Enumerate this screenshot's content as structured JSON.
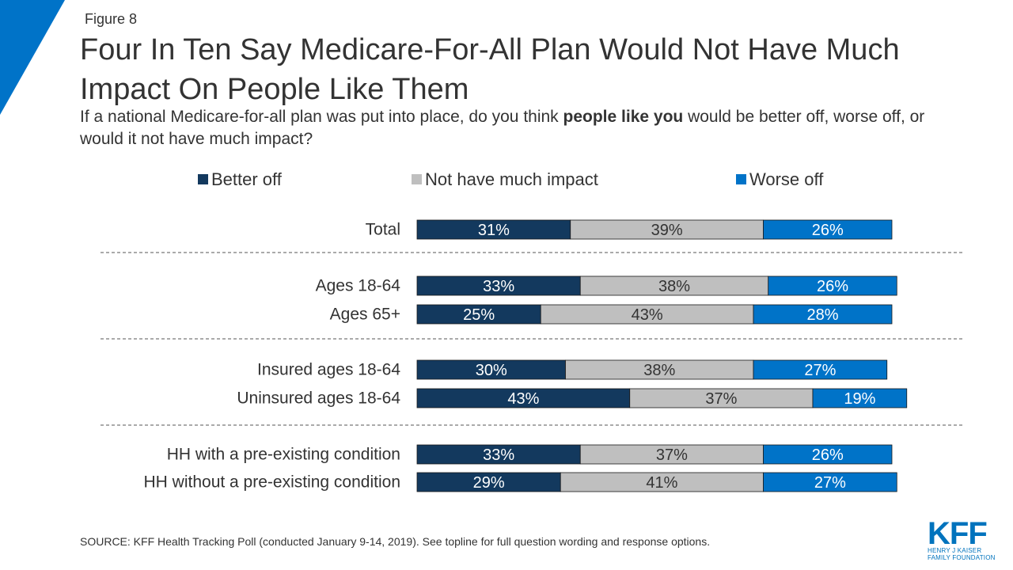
{
  "figure_label": "Figure 8",
  "title": "Four In Ten Say Medicare-For-All Plan Would Not Have Much Impact On People Like Them",
  "subtitle": {
    "before": "If a national Medicare-for-all plan was put into place, do you think ",
    "bold": "people like you",
    "after": " would be better off, worse off, or would it not have much impact?"
  },
  "colors": {
    "better_off": "#13395e",
    "no_impact": "#bfbfbf",
    "worse_off": "#0073c8",
    "brand": "#0073bd"
  },
  "chart_data": {
    "type": "bar",
    "orientation": "horizontal",
    "stacked": true,
    "legend_position": "top",
    "xlim": [
      0,
      100
    ],
    "categories": [
      "Total",
      "Ages 18-64",
      "Ages 65+",
      "Insured ages 18-64",
      "Uninsured ages 18-64",
      "HH with a pre-existing condition",
      "HH without a pre-existing condition"
    ],
    "groups": [
      [
        0
      ],
      [
        1,
        2
      ],
      [
        3,
        4
      ],
      [
        5,
        6
      ]
    ],
    "series": [
      {
        "name": "Better off",
        "key": "better_off",
        "values": [
          31,
          33,
          25,
          30,
          43,
          33,
          29
        ],
        "labels": [
          "31%",
          "33%",
          "25%",
          "30%",
          "43%",
          "33%",
          "29%"
        ]
      },
      {
        "name": "Not have much impact",
        "key": "no_impact",
        "values": [
          39,
          38,
          43,
          38,
          37,
          37,
          41
        ],
        "labels": [
          "39%",
          "38%",
          "43%",
          "38%",
          "37%",
          "37%",
          "41%"
        ]
      },
      {
        "name": "Worse off",
        "key": "worse_off",
        "values": [
          26,
          26,
          28,
          27,
          19,
          26,
          27
        ],
        "labels": [
          "26%",
          "26%",
          "28%",
          "27%",
          "19%",
          "26%",
          "27%"
        ]
      }
    ]
  },
  "source": "SOURCE: KFF Health Tracking Poll (conducted January 9-14, 2019). See topline for full question wording and response options.",
  "logo": {
    "name": "KFF",
    "line1": "HENRY J KAISER",
    "line2": "FAMILY FOUNDATION"
  }
}
